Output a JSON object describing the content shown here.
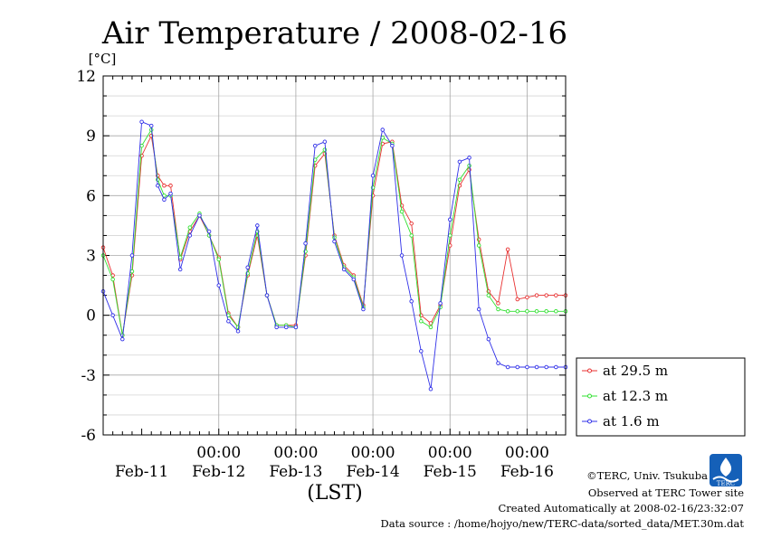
{
  "title": "Air Temperature / 2008-02-16",
  "credits": {
    "line1": "©TERC, Univ. Tsukuba",
    "line2": "Observed at TERC Tower site",
    "line3": "Created Automatically at 2008-02-16/23:32:07",
    "line4": "Data source : /home/hojyo/new/TERC-data/sorted_data/MET.30m.dat",
    "logo_text": "TERC"
  },
  "chart_data": {
    "type": "line",
    "title": "Air Temperature / 2008-02-16",
    "ylabel": "[°C]",
    "xlabel": "(LST)",
    "ylim": [
      -6,
      12
    ],
    "yticks": [
      -6,
      -3,
      0,
      3,
      6,
      9,
      12
    ],
    "xlim": [
      0,
      144
    ],
    "x_unit": "hours since 2008-02-10 12:00 LST",
    "x_time_labels": [
      "00:00",
      "00:00",
      "00:00",
      "00:00",
      "00:00"
    ],
    "x_time_positions": [
      36,
      60,
      84,
      108,
      132
    ],
    "x_date_labels": [
      "Feb-11",
      "Feb-12",
      "Feb-13",
      "Feb-14",
      "Feb-15",
      "Feb-16"
    ],
    "x_date_positions": [
      12,
      36,
      60,
      84,
      108,
      132
    ],
    "grid": true,
    "legend_position": "right",
    "x": [
      0,
      3,
      6,
      9,
      12,
      15,
      17,
      19,
      21,
      24,
      27,
      30,
      33,
      36,
      39,
      42,
      45,
      48,
      51,
      54,
      57,
      60,
      63,
      66,
      69,
      72,
      75,
      78,
      81,
      84,
      87,
      90,
      93,
      96,
      99,
      102,
      105,
      108,
      111,
      114,
      117,
      120,
      123,
      126,
      129,
      132,
      135,
      138,
      141,
      144
    ],
    "series": [
      {
        "name": "at 29.5 m",
        "color": "#e83030",
        "values": [
          3.4,
          2.0,
          -1.0,
          2.0,
          8.0,
          9.0,
          7.0,
          6.5,
          6.5,
          2.8,
          4.2,
          5.0,
          4.0,
          2.9,
          0.1,
          -0.6,
          2.0,
          4.0,
          1.0,
          -0.5,
          -0.5,
          -0.5,
          3.0,
          7.5,
          8.1,
          4.0,
          2.5,
          2.0,
          0.5,
          6.0,
          8.6,
          8.7,
          5.5,
          4.6,
          0.0,
          -0.4,
          0.5,
          3.5,
          6.5,
          7.3,
          3.8,
          1.2,
          0.6,
          3.3,
          0.8,
          0.9,
          1.0,
          1.0,
          1.0,
          1.0
        ]
      },
      {
        "name": "at 12.3 m",
        "color": "#30e030",
        "values": [
          3.0,
          1.8,
          -1.0,
          2.2,
          8.5,
          9.3,
          6.8,
          6.0,
          6.0,
          2.9,
          4.4,
          5.1,
          4.0,
          2.8,
          0.0,
          -0.6,
          2.1,
          4.2,
          1.0,
          -0.5,
          -0.5,
          -0.6,
          3.2,
          7.8,
          8.3,
          3.9,
          2.4,
          1.9,
          0.4,
          6.4,
          8.9,
          8.6,
          5.2,
          4.0,
          -0.3,
          -0.6,
          0.4,
          4.0,
          6.8,
          7.5,
          3.5,
          1.0,
          0.3,
          0.2,
          0.2,
          0.2,
          0.2,
          0.2,
          0.2,
          0.2
        ]
      },
      {
        "name": "at 1.6 m",
        "color": "#3030e8",
        "values": [
          1.2,
          0.0,
          -1.2,
          3.0,
          9.7,
          9.5,
          6.5,
          5.8,
          6.1,
          2.3,
          4.0,
          5.0,
          4.2,
          1.5,
          -0.3,
          -0.8,
          2.4,
          4.5,
          1.0,
          -0.6,
          -0.6,
          -0.6,
          3.6,
          8.5,
          8.7,
          3.7,
          2.3,
          1.8,
          0.3,
          7.0,
          9.3,
          8.5,
          3.0,
          0.7,
          -1.8,
          -3.7,
          0.6,
          4.8,
          7.7,
          7.9,
          0.3,
          -1.2,
          -2.4,
          -2.6,
          -2.6,
          -2.6,
          -2.6,
          -2.6,
          -2.6,
          -2.6
        ]
      }
    ]
  }
}
